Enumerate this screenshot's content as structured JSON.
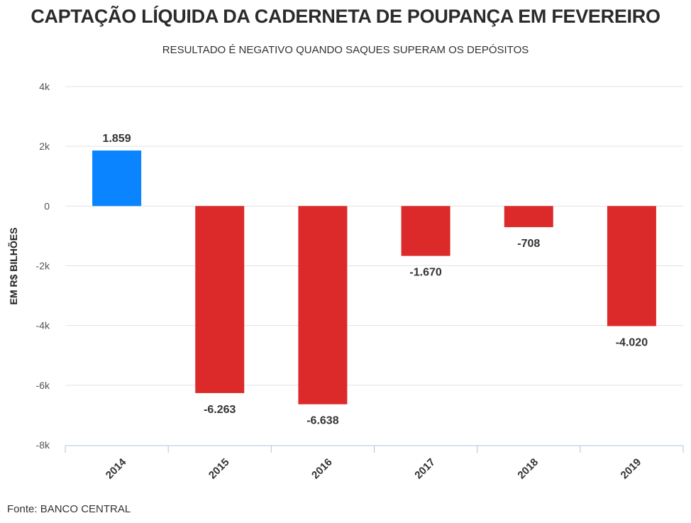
{
  "chart_data": {
    "type": "bar",
    "title": "CAPTAÇÃO LÍQUIDA DA CADERNETA DE POUPANÇA EM FEVEREIRO",
    "subtitle": "RESULTADO É NEGATIVO QUANDO SAQUES SUPERAM OS DEPÓSITOS",
    "ylabel": "EM R$ BILHÕES",
    "xlabel": "",
    "categories": [
      "2014",
      "2015",
      "2016",
      "2017",
      "2018",
      "2019"
    ],
    "values": [
      1859,
      -6263,
      -6638,
      -1670,
      -708,
      -4020
    ],
    "data_labels": [
      "1.859",
      "-6.263",
      "-6.638",
      "-1.670",
      "-708",
      "-4.020"
    ],
    "ylim": [
      -8000,
      4000
    ],
    "yticks": [
      4000,
      2000,
      0,
      -2000,
      -4000,
      -6000,
      -8000
    ],
    "ytick_labels": [
      "4k",
      "2k",
      "0",
      "-2k",
      "-4k",
      "-6k",
      "-8k"
    ],
    "grid": true,
    "legend": "none",
    "colors": {
      "positive": "#0a84ff",
      "negative": "#dc2a2a",
      "grid": "#e3e3e3",
      "axis": "#b0c4de"
    }
  },
  "footer": "Fonte: BANCO CENTRAL"
}
